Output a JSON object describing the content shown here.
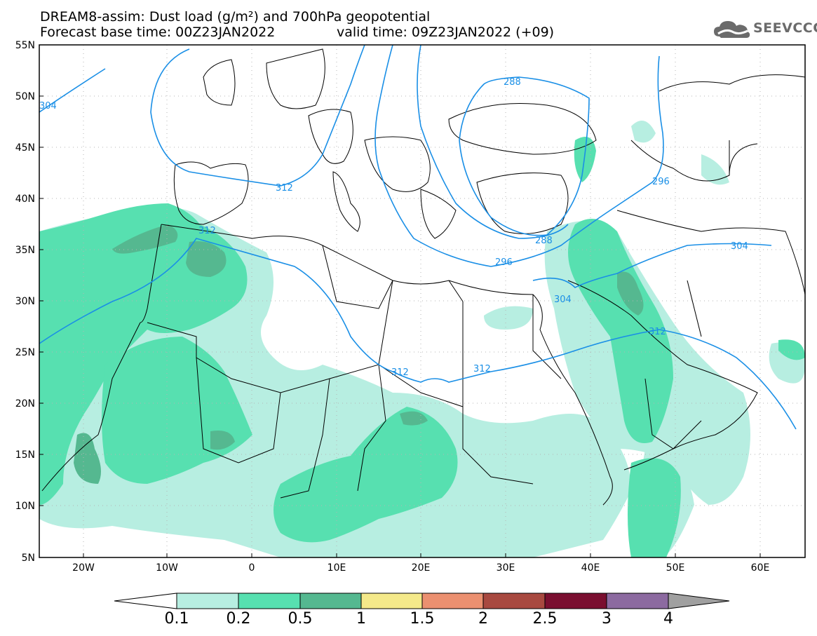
{
  "title": {
    "line1": "DREAM8-assim: Dust load (g/m²) and 700hPa geopotential",
    "forecast_base_time": "Forecast base time: 00Z23JAN2022",
    "valid_time": "valid time: 09Z23JAN2022 (+09)"
  },
  "logo": {
    "text": "SEEVCCC",
    "icon": "cloud-icon"
  },
  "map": {
    "lat_labels": [
      "55N",
      "50N",
      "45N",
      "40N",
      "35N",
      "30N",
      "25N",
      "20N",
      "15N",
      "10N",
      "5N"
    ],
    "lon_labels": [
      "20W",
      "10W",
      "0",
      "10E",
      "20E",
      "30E",
      "40E",
      "50E",
      "60E"
    ],
    "contour_labels": [
      "304",
      "312",
      "312",
      "288",
      "296",
      "296",
      "288",
      "304",
      "304",
      "312",
      "312",
      "312",
      "312"
    ],
    "contour_color": "#1a8fe6"
  },
  "colorbar": {
    "labels": [
      "0.1",
      "0.2",
      "0.5",
      "1",
      "1.5",
      "2",
      "2.5",
      "3",
      "4"
    ],
    "colors": [
      "#ffffff",
      "#b7eee1",
      "#57e0b0",
      "#55b890",
      "#f4e98a",
      "#eb9070",
      "#a84940",
      "#7a0f30",
      "#8c6aa0",
      "#a0a0a0"
    ]
  },
  "dust_colors": {
    "low": "#b7eee1",
    "mid": "#57e0b0",
    "high": "#55b890"
  }
}
